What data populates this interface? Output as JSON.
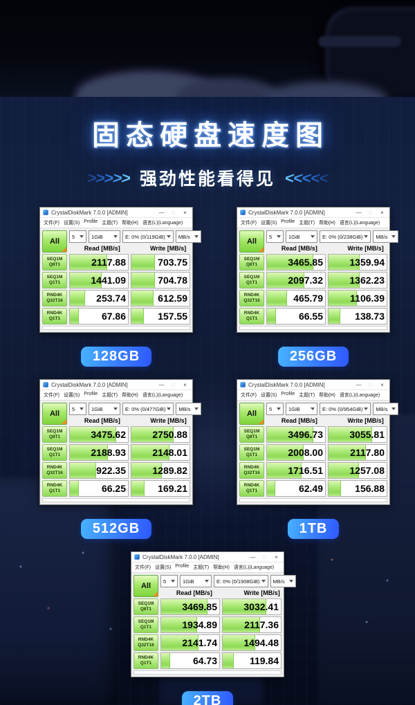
{
  "header": {
    "title": "固态硬盘速度图",
    "subtitle": "强劲性能看得见",
    "chevrons_left": ">>>>>",
    "chevrons_right": "<<<<<"
  },
  "app": {
    "window_title": "CrystalDiskMark 7.0.0 [ADMIN]",
    "menu": [
      "文件(F)",
      "设置(S)",
      "Profile",
      "主题(T)",
      "帮助(H)",
      "语言(L)(Language)"
    ],
    "window_controls": {
      "minimize": "—",
      "maximize": "□",
      "close": "×"
    },
    "toolbar": {
      "all_label": "All",
      "count": "5",
      "size": "1GiB",
      "unit": "MB/s"
    },
    "columns": {
      "read": "Read [MB/s]",
      "write": "Write [MB/s]"
    },
    "row_labels": [
      {
        "line1": "SEQ1M",
        "line2": "Q8T1"
      },
      {
        "line1": "SEQ1M",
        "line2": "Q1T1"
      },
      {
        "line1": "RND4K",
        "line2": "Q32T16"
      },
      {
        "line1": "RND4K",
        "line2": "Q1T1"
      }
    ]
  },
  "windows": [
    {
      "badge": "128GB",
      "drive": "E: 0% (0/119GiB)",
      "rows": [
        {
          "read": "2117.88",
          "write": "703.75"
        },
        {
          "read": "1441.09",
          "write": "704.78"
        },
        {
          "read": "253.74",
          "write": "612.59"
        },
        {
          "read": "67.86",
          "write": "157.55"
        }
      ]
    },
    {
      "badge": "256GB",
      "drive": "E: 0% (0/238GiB)",
      "rows": [
        {
          "read": "3465.85",
          "write": "1359.94"
        },
        {
          "read": "2097.32",
          "write": "1362.23"
        },
        {
          "read": "465.79",
          "write": "1106.39"
        },
        {
          "read": "66.55",
          "write": "138.73"
        }
      ]
    },
    {
      "badge": "512GB",
      "drive": "E: 0% (0/477GiB)",
      "rows": [
        {
          "read": "3475.62",
          "write": "2750.88"
        },
        {
          "read": "2188.93",
          "write": "2148.01"
        },
        {
          "read": "922.35",
          "write": "1289.82"
        },
        {
          "read": "66.25",
          "write": "169.21"
        }
      ]
    },
    {
      "badge": "1TB",
      "drive": "E: 0% (0/954GiB)",
      "rows": [
        {
          "read": "3496.73",
          "write": "3055.81"
        },
        {
          "read": "2008.00",
          "write": "2117.80"
        },
        {
          "read": "1716.51",
          "write": "1257.08"
        },
        {
          "read": "62.49",
          "write": "156.88"
        }
      ]
    },
    {
      "badge": "2TB",
      "drive": "E: 0% (0/1908GiB)",
      "rows": [
        {
          "read": "3469.85",
          "write": "3032.41"
        },
        {
          "read": "1934.89",
          "write": "2117.36"
        },
        {
          "read": "2141.74",
          "write": "1494.48"
        },
        {
          "read": "64.73",
          "write": "119.84"
        }
      ]
    }
  ],
  "colors": {
    "badge_gradient_start": "#47b3ff",
    "badge_gradient_end": "#2e58ff",
    "bar_green": "#8ed957",
    "all_button_green": "#7ed43a",
    "title_glow_blue": "#4d9fff",
    "background_navy": "#0d1630"
  }
}
